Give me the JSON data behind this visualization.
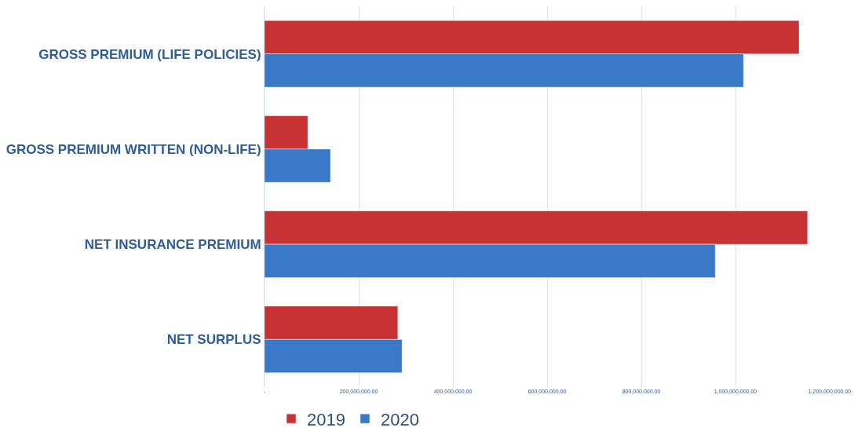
{
  "chart_data": {
    "type": "bar",
    "orientation": "horizontal",
    "categories": [
      "GROSS PREMIUM (LIFE POLICIES)",
      "GROSS PREMIUM WRITTEN (NON-LIFE)",
      "NET INSURANCE PREMIUM",
      "NET SURPLUS"
    ],
    "series": [
      {
        "name": "2019",
        "color": "#c83232",
        "values": [
          1135000000,
          92000000,
          1153000000,
          283000000
        ]
      },
      {
        "name": "2020",
        "color": "#3a78c8",
        "values": [
          1017000000,
          140000000,
          957000000,
          292000000
        ]
      }
    ],
    "xlim": [
      0,
      1200000000
    ],
    "xticks": [
      {
        "value": 0,
        "label": "-"
      },
      {
        "value": 200000000,
        "label": "200,000,000.00"
      },
      {
        "value": 400000000,
        "label": "400,000,000.00"
      },
      {
        "value": 600000000,
        "label": "600,000,000.00"
      },
      {
        "value": 800000000,
        "label": "800,000,000.00"
      },
      {
        "value": 1000000000,
        "label": "1,000,000,000.00"
      },
      {
        "value": 1200000000,
        "label": "1,200,000,000.00"
      }
    ],
    "grid": "x",
    "legend": "bottom"
  }
}
